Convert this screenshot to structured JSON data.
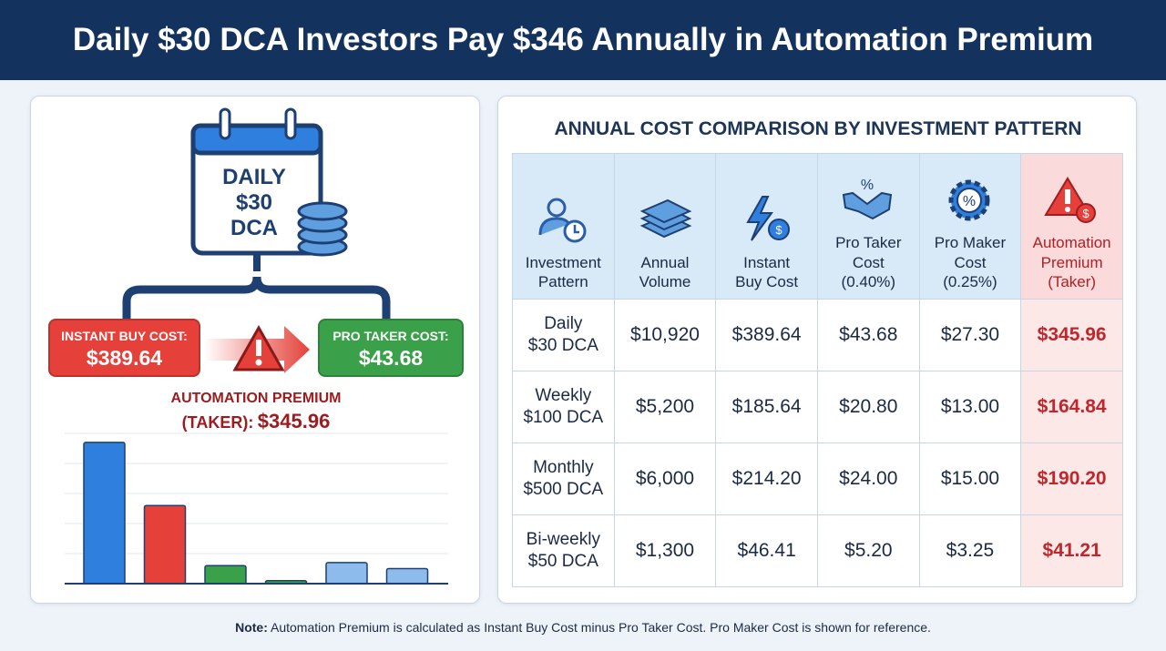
{
  "title": "Daily $30 DCA Investors Pay $346 Annually in Automation Premium",
  "left": {
    "calendar_text": [
      "DAILY",
      "$30",
      "DCA"
    ],
    "instant_label": "INSTANT BUY COST:",
    "instant_value": "$389.64",
    "taker_label": "PRO TAKER COST:",
    "taker_value": "$43.68",
    "premium_label_1": "AUTOMATION PREMIUM",
    "premium_label_2": "(TAKER):",
    "premium_value": "$345.96",
    "colors": {
      "instant": "#e5413a",
      "taker": "#3aa14a",
      "accent": "#9c1c20"
    }
  },
  "chart_data": {
    "type": "bar",
    "categories": [
      "",
      "",
      "",
      "",
      "",
      ""
    ],
    "values": [
      4.7,
      2.6,
      0.6,
      0.1,
      0.7,
      0.5
    ],
    "colors": [
      "#2f7fdf",
      "#e5413a",
      "#3aa14a",
      "#3aa14a",
      "#8dbcec",
      "#8dbcec"
    ],
    "ylim": [
      0,
      5
    ],
    "grid": true,
    "title": "",
    "xlabel": "",
    "ylabel": ""
  },
  "table": {
    "title": "ANNUAL COST COMPARISON BY INVESTMENT PATTERN",
    "headers": [
      {
        "icon": "user-clock-icon",
        "l1": "Investment",
        "l2": "Pattern"
      },
      {
        "icon": "money-stack-icon",
        "l1": "Annual",
        "l2": "Volume"
      },
      {
        "icon": "lightning-dollar-icon",
        "l1": "Instant",
        "l2": "Buy Cost"
      },
      {
        "icon": "handshake-percent-icon",
        "l1": "Pro Taker",
        "l2": "Cost",
        "l3": "(0.40%)"
      },
      {
        "icon": "gear-percent-icon",
        "l1": "Pro Maker",
        "l2": "Cost",
        "l3": "(0.25%)"
      },
      {
        "icon": "warning-dollar-icon",
        "l1": "Automation",
        "l2": "Premium",
        "l3": "(Taker)"
      }
    ],
    "rows": [
      {
        "p1": "Daily",
        "p2": "$30 DCA",
        "vol": "$10,920",
        "instant": "$389.64",
        "taker": "$43.68",
        "maker": "$27.30",
        "premium": "$345.96"
      },
      {
        "p1": "Weekly",
        "p2": "$100 DCA",
        "vol": "$5,200",
        "instant": "$185.64",
        "taker": "$20.80",
        "maker": "$13.00",
        "premium": "$164.84"
      },
      {
        "p1": "Monthly",
        "p2": "$500 DCA",
        "vol": "$6,000",
        "instant": "$214.20",
        "taker": "$24.00",
        "maker": "$15.00",
        "premium": "$190.20"
      },
      {
        "p1": "Bi-weekly",
        "p2": "$50 DCA",
        "vol": "$1,300",
        "instant": "$46.41",
        "taker": "$5.20",
        "maker": "$3.25",
        "premium": "$41.21"
      }
    ]
  },
  "note": {
    "bold": "Note:",
    "text": " Automation Premium is calculated as Instant Buy Cost minus Pro Taker Cost. Pro Maker Cost is shown for reference."
  }
}
